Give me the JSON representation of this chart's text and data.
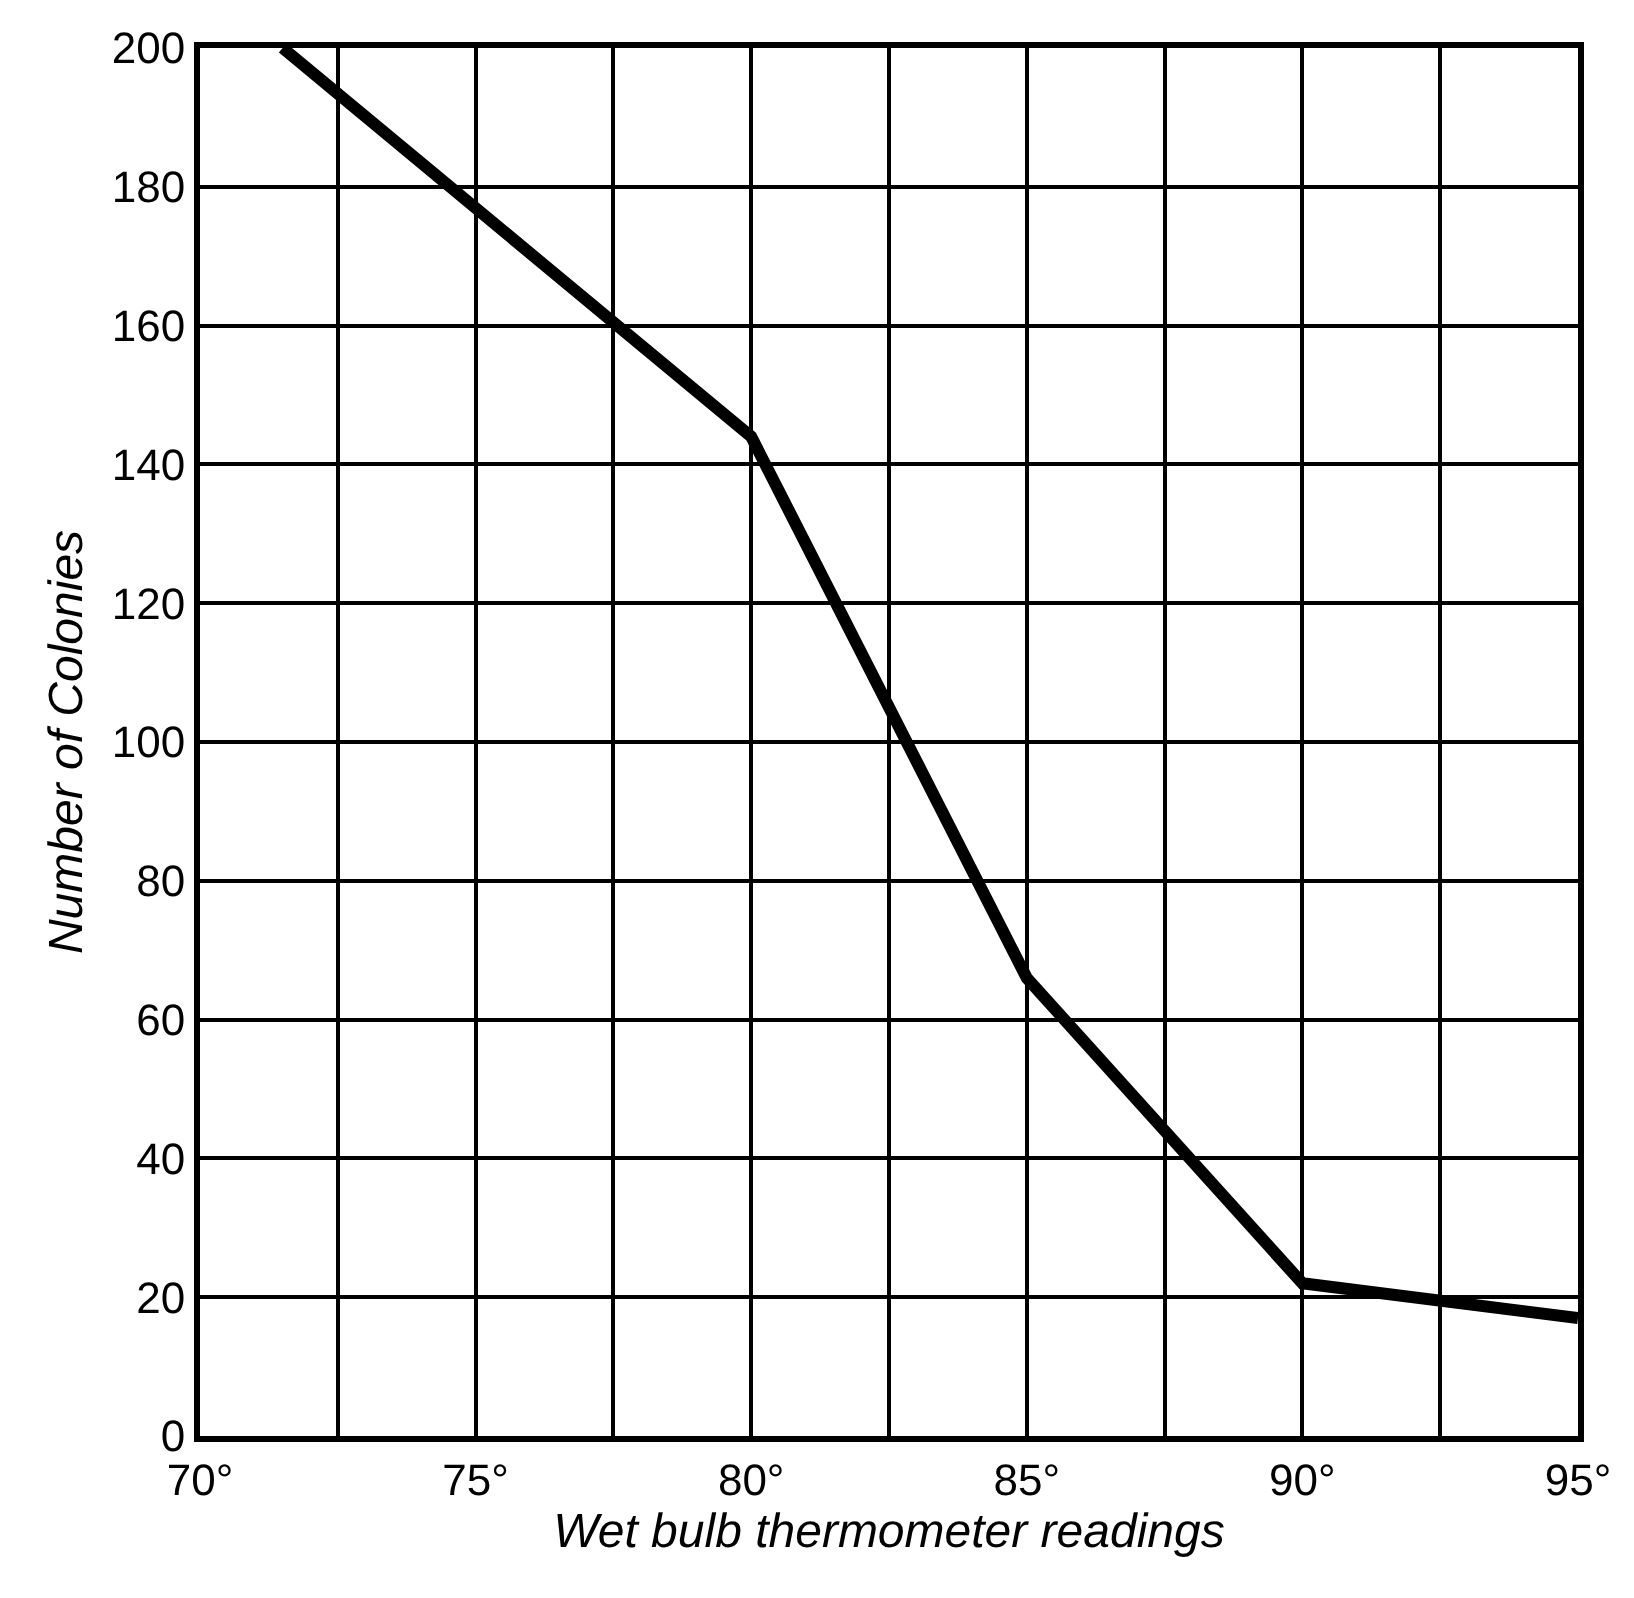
{
  "chart_data": {
    "type": "line",
    "xlabel": "Wet bulb thermometer readings",
    "ylabel": "Number of Colonies",
    "x": [
      71.5,
      80,
      85,
      90,
      95
    ],
    "series": [
      {
        "color": "#000000",
        "values": [
          200,
          144,
          66,
          22,
          17
        ]
      }
    ],
    "xlim": [
      70,
      95
    ],
    "xticks": [
      {
        "value": 70,
        "label": "70°"
      },
      {
        "value": 72.5,
        "label": null
      },
      {
        "value": 75,
        "label": "75°"
      },
      {
        "value": 77.5,
        "label": null
      },
      {
        "value": 80,
        "label": "80°"
      },
      {
        "value": 82.5,
        "label": null
      },
      {
        "value": 85,
        "label": "85°"
      },
      {
        "value": 87.5,
        "label": null
      },
      {
        "value": 90,
        "label": "90°"
      },
      {
        "value": 92.5,
        "label": null
      },
      {
        "value": 95,
        "label": "95°"
      }
    ],
    "ylim": [
      0,
      200
    ],
    "yticks": [
      0,
      20,
      40,
      60,
      80,
      100,
      120,
      140,
      160,
      180,
      200
    ],
    "grid": true,
    "marker": "none",
    "line_style": "solid"
  }
}
